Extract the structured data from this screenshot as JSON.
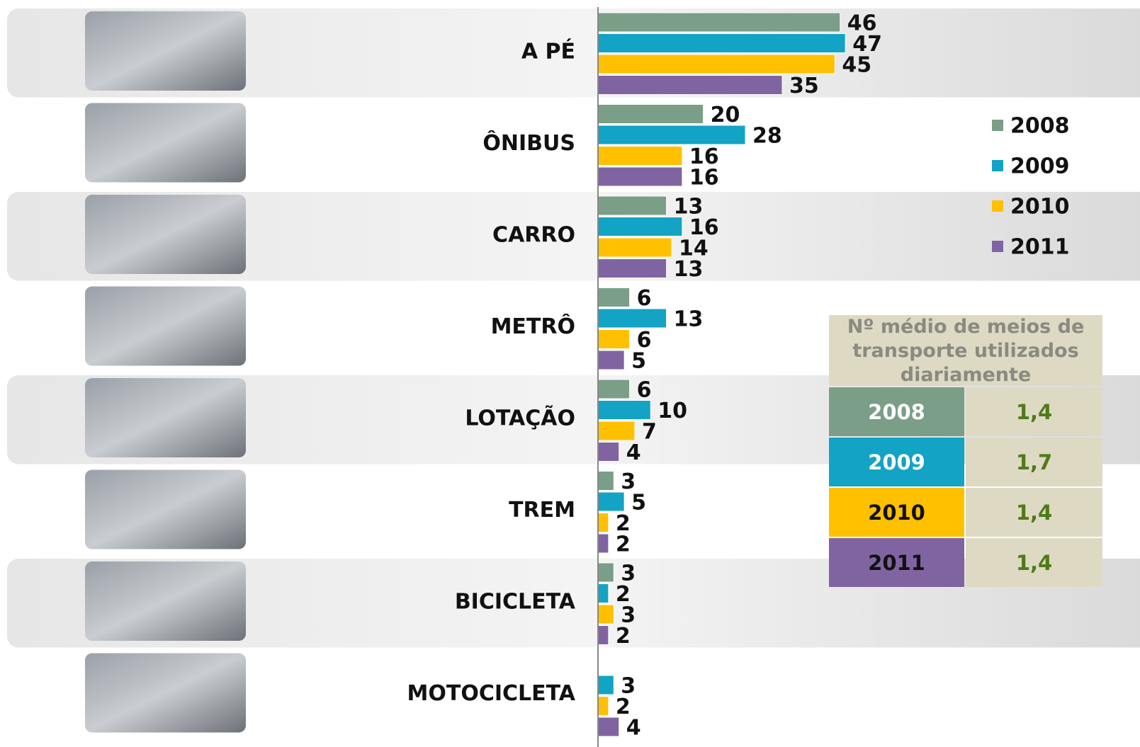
{
  "chart_data": {
    "type": "bar",
    "categories": [
      "A PÉ",
      "ÔNIBUS",
      "CARRO",
      "METRÔ",
      "LOTAÇÃO",
      "TREM",
      "BICICLETA",
      "MOTOCICLETA"
    ],
    "series": [
      {
        "name": "2008",
        "color": "#7a9e87",
        "values": [
          46,
          20,
          13,
          6,
          6,
          3,
          3,
          null
        ]
      },
      {
        "name": "2009",
        "color": "#13a3c4",
        "values": [
          47,
          28,
          16,
          13,
          10,
          5,
          2,
          3
        ]
      },
      {
        "name": "2010",
        "color": "#ffc000",
        "values": [
          45,
          16,
          14,
          6,
          7,
          2,
          3,
          2
        ]
      },
      {
        "name": "2011",
        "color": "#8064a2",
        "values": [
          35,
          16,
          13,
          5,
          4,
          2,
          2,
          4
        ]
      }
    ],
    "xlim": [
      0,
      100
    ],
    "legend": "right"
  },
  "table": {
    "title": "Nº médio de meios de transporte utilizados diariamente",
    "rows": [
      [
        "2008",
        "1,4"
      ],
      [
        "2009",
        "1,7"
      ],
      [
        "2010",
        "1,4"
      ],
      [
        "2011",
        "1,4"
      ]
    ]
  }
}
